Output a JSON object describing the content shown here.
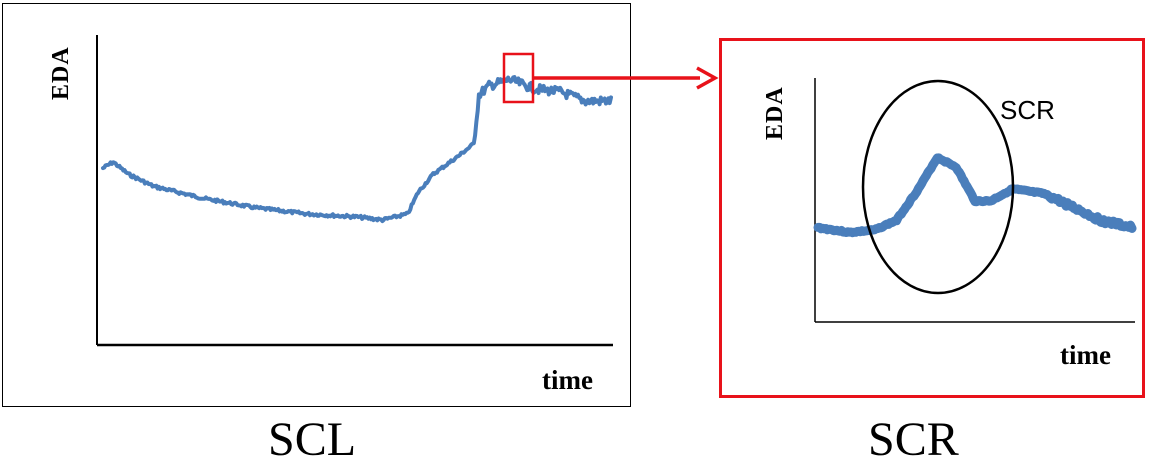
{
  "panels": {
    "left": {
      "ylabel": "EDA",
      "xlabel": "time",
      "caption": "SCL"
    },
    "right": {
      "ylabel": "EDA",
      "xlabel": "time",
      "caption": "SCR",
      "annotation": "SCR"
    }
  },
  "colors": {
    "signal": "#4a7ebb",
    "highlight": "#e8121a",
    "axis": "#000000",
    "frame": "#000000"
  },
  "chart_data": [
    {
      "type": "line",
      "title": "",
      "xlabel": "time",
      "ylabel": "EDA",
      "x": [
        0,
        0.02,
        0.05,
        0.1,
        0.2,
        0.3,
        0.4,
        0.5,
        0.55,
        0.6,
        0.62,
        0.65,
        0.7,
        0.73,
        0.74,
        0.76,
        0.8,
        0.85,
        0.9,
        0.95,
        1.0
      ],
      "values": [
        0.58,
        0.6,
        0.56,
        0.52,
        0.48,
        0.45,
        0.43,
        0.42,
        0.41,
        0.43,
        0.5,
        0.56,
        0.62,
        0.66,
        0.82,
        0.85,
        0.87,
        0.84,
        0.83,
        0.8,
        0.8
      ]
    },
    {
      "type": "line",
      "title": "",
      "xlabel": "time",
      "ylabel": "EDA",
      "x": [
        0,
        0.1,
        0.18,
        0.25,
        0.32,
        0.38,
        0.44,
        0.5,
        0.55,
        0.62,
        0.72,
        0.82,
        0.9,
        1.0
      ],
      "values": [
        0.39,
        0.37,
        0.38,
        0.42,
        0.55,
        0.68,
        0.64,
        0.5,
        0.5,
        0.55,
        0.53,
        0.47,
        0.42,
        0.39
      ]
    }
  ]
}
